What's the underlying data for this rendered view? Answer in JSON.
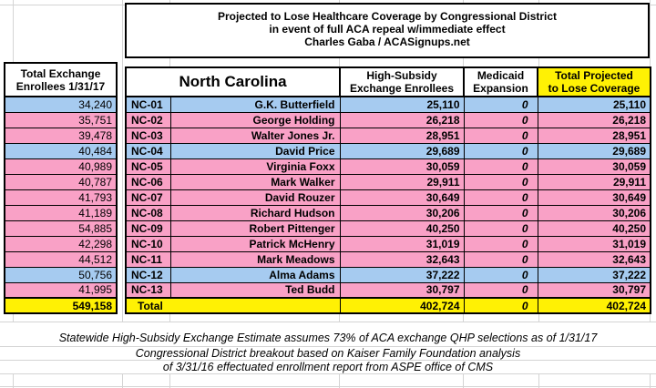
{
  "title": {
    "lines": [
      "Projected to Lose Healthcare Coverage by Congressional District",
      "in event of full ACA repeal w/immediate effect",
      "Charles Gaba / ACASignups.net"
    ]
  },
  "left_table": {
    "header_lines": [
      "Total Exchange",
      "Enrollees 1/31/17"
    ],
    "total_value": "549,158"
  },
  "main_table": {
    "state_label": "North Carolina",
    "columns": {
      "high_subsidy_lines": [
        "High-Subsidy",
        "Exchange Enrollees"
      ],
      "medicaid_lines": [
        "Medicaid",
        "Expansion"
      ],
      "total_lines": [
        "Total Projected",
        "to Lose Coverage"
      ]
    },
    "total_row": {
      "label": "Total",
      "high_subsidy": "402,724",
      "medicaid": "0",
      "total": "402,724"
    }
  },
  "rows": [
    {
      "district": "NC-01",
      "rep": "G.K. Butterfield",
      "party": "blue",
      "exchange_enrollees": "34,240",
      "high_subsidy": "25,110",
      "medicaid": "0",
      "total": "25,110"
    },
    {
      "district": "NC-02",
      "rep": "George Holding",
      "party": "pink",
      "exchange_enrollees": "35,751",
      "high_subsidy": "26,218",
      "medicaid": "0",
      "total": "26,218"
    },
    {
      "district": "NC-03",
      "rep": "Walter Jones Jr.",
      "party": "pink",
      "exchange_enrollees": "39,478",
      "high_subsidy": "28,951",
      "medicaid": "0",
      "total": "28,951"
    },
    {
      "district": "NC-04",
      "rep": "David Price",
      "party": "blue",
      "exchange_enrollees": "40,484",
      "high_subsidy": "29,689",
      "medicaid": "0",
      "total": "29,689"
    },
    {
      "district": "NC-05",
      "rep": "Virginia Foxx",
      "party": "pink",
      "exchange_enrollees": "40,989",
      "high_subsidy": "30,059",
      "medicaid": "0",
      "total": "30,059"
    },
    {
      "district": "NC-06",
      "rep": "Mark Walker",
      "party": "pink",
      "exchange_enrollees": "40,787",
      "high_subsidy": "29,911",
      "medicaid": "0",
      "total": "29,911"
    },
    {
      "district": "NC-07",
      "rep": "David Rouzer",
      "party": "pink",
      "exchange_enrollees": "41,793",
      "high_subsidy": "30,649",
      "medicaid": "0",
      "total": "30,649"
    },
    {
      "district": "NC-08",
      "rep": "Richard Hudson",
      "party": "pink",
      "exchange_enrollees": "41,189",
      "high_subsidy": "30,206",
      "medicaid": "0",
      "total": "30,206"
    },
    {
      "district": "NC-09",
      "rep": "Robert Pittenger",
      "party": "pink",
      "exchange_enrollees": "54,885",
      "high_subsidy": "40,250",
      "medicaid": "0",
      "total": "40,250"
    },
    {
      "district": "NC-10",
      "rep": "Patrick McHenry",
      "party": "pink",
      "exchange_enrollees": "42,298",
      "high_subsidy": "31,019",
      "medicaid": "0",
      "total": "31,019"
    },
    {
      "district": "NC-11",
      "rep": "Mark Meadows",
      "party": "pink",
      "exchange_enrollees": "44,512",
      "high_subsidy": "32,643",
      "medicaid": "0",
      "total": "32,643"
    },
    {
      "district": "NC-12",
      "rep": "Alma Adams",
      "party": "blue",
      "exchange_enrollees": "50,756",
      "high_subsidy": "37,222",
      "medicaid": "0",
      "total": "37,222"
    },
    {
      "district": "NC-13",
      "rep": "Ted Budd",
      "party": "pink",
      "exchange_enrollees": "41,995",
      "high_subsidy": "30,797",
      "medicaid": "0",
      "total": "30,797"
    }
  ],
  "footnotes": [
    "Statewide High-Subsidy Exchange Estimate assumes 73% of ACA exchange QHP selections as of 1/31/17",
    "Congressional District breakout based on Kaiser Family Foundation analysis",
    "of 3/31/16 effectuated enrollment report from ASPE office of CMS"
  ],
  "colors": {
    "dem_blue": "#A6CBF0",
    "rep_pink": "#F9A1C6",
    "highlight_yellow": "#FFF104",
    "gridline_gray": "#D4D4D4"
  }
}
